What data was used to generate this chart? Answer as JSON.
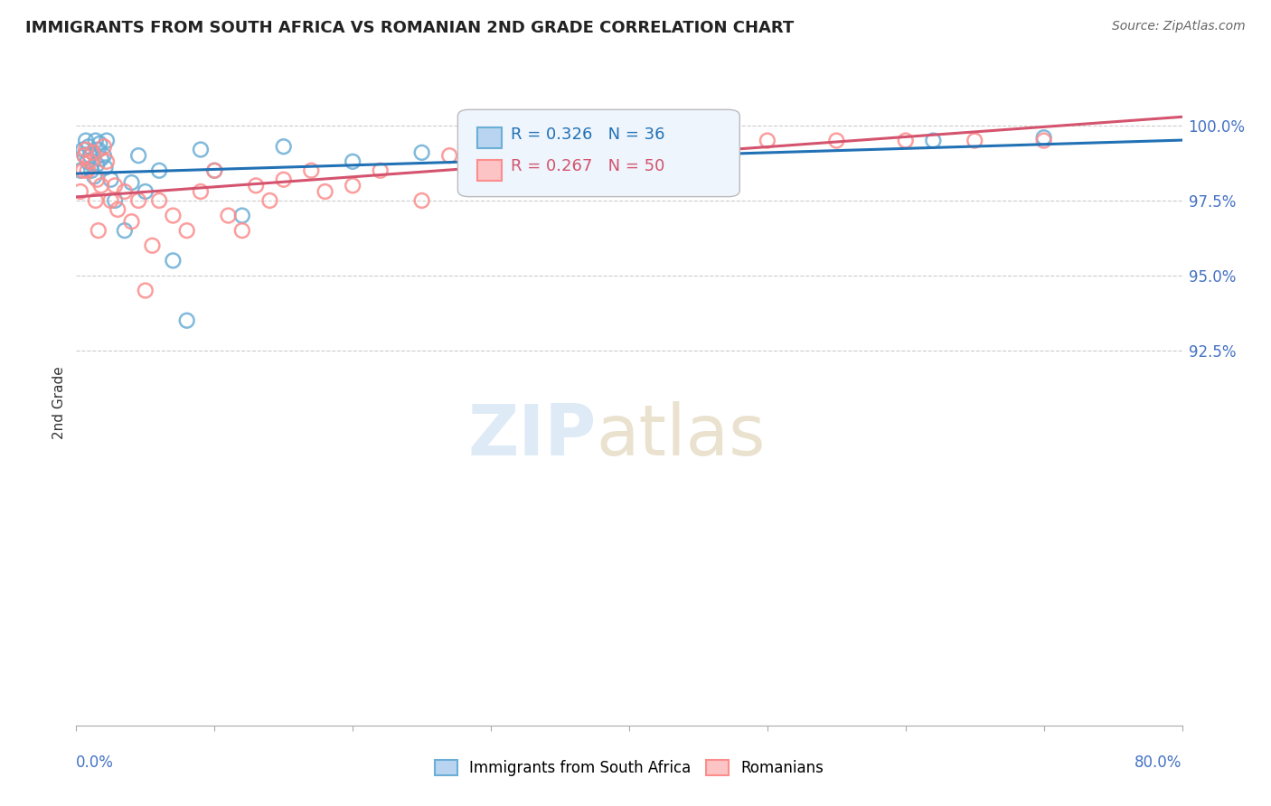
{
  "title": "IMMIGRANTS FROM SOUTH AFRICA VS ROMANIAN 2ND GRADE CORRELATION CHART",
  "source": "Source: ZipAtlas.com",
  "ylabel": "2nd Grade",
  "xmin": 0.0,
  "xmax": 80.0,
  "ymin": 80.0,
  "ymax": 101.5,
  "yticks": [
    92.5,
    95.0,
    97.5,
    100.0
  ],
  "legend1_label": "Immigrants from South Africa",
  "legend2_label": "Romanians",
  "r1": 0.326,
  "n1": 36,
  "r2": 0.267,
  "n2": 50,
  "color_blue": "#6baed6",
  "color_pink": "#fc8d8d",
  "color_blue_line": "#2171b5",
  "color_pink_line": "#d4536e",
  "blue_scatter_x": [
    0.3,
    0.5,
    0.6,
    0.7,
    0.8,
    0.9,
    1.0,
    1.1,
    1.2,
    1.3,
    1.4,
    1.5,
    1.6,
    1.7,
    1.8,
    2.0,
    2.1,
    2.2,
    2.5,
    2.8,
    3.5,
    4.0,
    4.5,
    5.0,
    6.0,
    7.0,
    8.0,
    9.0,
    10.0,
    12.0,
    15.0,
    20.0,
    25.0,
    45.0,
    62.0,
    70.0
  ],
  "blue_scatter_y": [
    98.5,
    99.2,
    99.0,
    99.5,
    98.8,
    99.3,
    99.0,
    98.5,
    99.1,
    98.3,
    99.5,
    98.7,
    99.2,
    99.4,
    98.9,
    99.0,
    98.6,
    99.5,
    98.2,
    97.5,
    96.5,
    98.1,
    99.0,
    97.8,
    98.5,
    95.5,
    93.5,
    99.2,
    98.5,
    97.0,
    99.3,
    98.8,
    99.1,
    99.5,
    99.5,
    99.6
  ],
  "pink_scatter_x": [
    0.3,
    0.5,
    0.6,
    0.7,
    0.8,
    1.0,
    1.2,
    1.4,
    1.5,
    1.6,
    1.8,
    2.0,
    2.2,
    2.5,
    2.8,
    3.0,
    3.5,
    4.0,
    4.5,
    5.0,
    5.5,
    6.0,
    7.0,
    8.0,
    9.0,
    10.0,
    11.0,
    12.0,
    13.0,
    14.0,
    15.0,
    17.0,
    18.0,
    20.0,
    22.0,
    25.0,
    27.0,
    30.0,
    32.0,
    35.0,
    38.0,
    40.0,
    42.0,
    45.0,
    47.0,
    50.0,
    55.0,
    60.0,
    65.0,
    70.0
  ],
  "pink_scatter_y": [
    97.8,
    98.5,
    99.0,
    99.2,
    98.5,
    98.8,
    99.1,
    97.5,
    98.2,
    96.5,
    98.0,
    99.3,
    98.8,
    97.5,
    98.0,
    97.2,
    97.8,
    96.8,
    97.5,
    94.5,
    96.0,
    97.5,
    97.0,
    96.5,
    97.8,
    98.5,
    97.0,
    96.5,
    98.0,
    97.5,
    98.2,
    98.5,
    97.8,
    98.0,
    98.5,
    97.5,
    99.0,
    99.5,
    99.5,
    99.0,
    99.5,
    99.5,
    99.0,
    99.5,
    99.5,
    99.5,
    99.5,
    99.5,
    99.5,
    99.5
  ]
}
